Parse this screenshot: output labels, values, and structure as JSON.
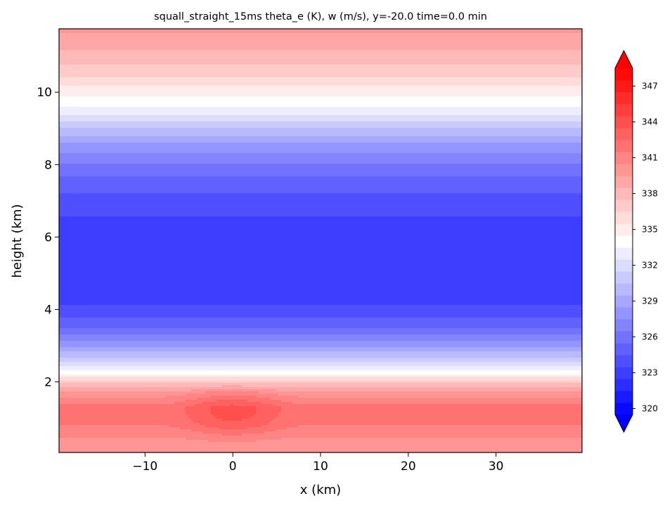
{
  "chart_data": {
    "type": "heatmap",
    "title": "squall_straight_15ms  theta_e (K), w (m/s),   y=-20.0  time=0.0 min",
    "xlabel": "x (km)",
    "ylabel": "height (km)",
    "xlim": [
      -19.8,
      39.8
    ],
    "ylim": [
      0.05,
      11.75
    ],
    "x_ticks": [
      -10,
      0,
      10,
      20,
      30
    ],
    "x_tick_labels": [
      "−10",
      "0",
      "10",
      "20",
      "30"
    ],
    "y_ticks": [
      2,
      4,
      6,
      8,
      10
    ],
    "y_tick_labels": [
      "2",
      "4",
      "6",
      "8",
      "10"
    ],
    "colorbar": {
      "min": 320,
      "max": 349,
      "step": 1,
      "extend": "both",
      "ticks": [
        320,
        323,
        326,
        329,
        332,
        335,
        338,
        341,
        344,
        347
      ],
      "tick_labels": [
        "320",
        "323",
        "326",
        "329",
        "332",
        "335",
        "338",
        "341",
        "344",
        "347"
      ],
      "low_color": "#0000ff",
      "mid_color": "#ffffff",
      "high_color": "#ff0000"
    },
    "profile": {
      "description_units": "height (km) vs theta_e (K)",
      "height": [
        0.05,
        0.4,
        0.8,
        1.3,
        1.7,
        2.0,
        2.2,
        2.6,
        3.0,
        3.5,
        4.0,
        4.5,
        5.3,
        6.0,
        6.8,
        7.5,
        8.0,
        8.5,
        9.0,
        9.5,
        10.0,
        10.5,
        11.0,
        11.75
      ],
      "theta_e": [
        340.4,
        340.9,
        342.0,
        342.3,
        340.5,
        337.5,
        335.2,
        331.7,
        328.7,
        326.0,
        324.3,
        323.3,
        323.0,
        323.2,
        324.3,
        325.5,
        326.9,
        328.6,
        331.0,
        333.6,
        335.4,
        337.3,
        338.6,
        340.2
      ]
    },
    "anomaly": {
      "description_units": "warm bubble centered at x (km), z (km), theta_e increment (K)",
      "x_center": 0,
      "z_center": 1.15,
      "x_radius": 9,
      "z_radius": 1.0,
      "amplitude": 2.2
    }
  }
}
